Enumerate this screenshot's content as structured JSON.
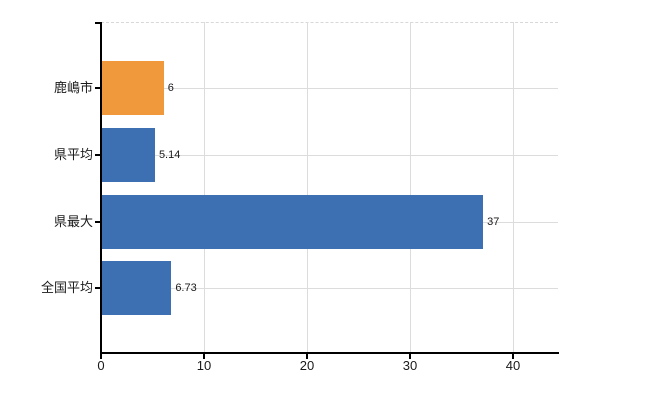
{
  "chart_data": {
    "type": "bar",
    "orientation": "horizontal",
    "categories": [
      "鹿嶋市",
      "県平均",
      "県最大",
      "全国平均"
    ],
    "values": [
      6,
      5.14,
      37,
      6.73
    ],
    "value_labels": [
      "6",
      "5.14",
      "37",
      "6.73"
    ],
    "bar_colors": [
      "#F0983C",
      "#3D6FB3",
      "#3D6FB3",
      "#3D6FB3"
    ],
    "x_ticks": [
      0,
      10,
      20,
      30,
      40
    ],
    "x_tick_labels": [
      "0",
      "10",
      "20",
      "30",
      "40"
    ],
    "xlim": [
      0,
      44.5
    ],
    "title": "",
    "xlabel": "",
    "ylabel": "",
    "grid": true,
    "gridline_color": "#dcdcdc",
    "top_border_style": "dashed",
    "axis_color": "#000000",
    "label_color": "#1a1a1a",
    "background": "#ffffff",
    "legend": "none"
  }
}
